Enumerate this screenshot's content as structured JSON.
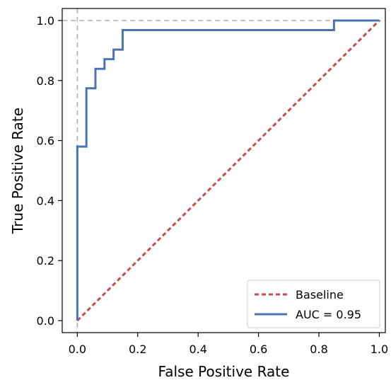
{
  "chart_data": {
    "type": "line",
    "title": "",
    "xlabel": "False Positive Rate",
    "ylabel": "True Positive Rate",
    "xlim": [
      -0.05,
      1.02
    ],
    "ylim": [
      -0.04,
      1.04
    ],
    "xticks": [
      0.0,
      0.2,
      0.4,
      0.6,
      0.8,
      1.0
    ],
    "yticks": [
      0.0,
      0.2,
      0.4,
      0.6,
      0.8,
      1.0
    ],
    "tick_labels_x": [
      "0.0",
      "0.2",
      "0.4",
      "0.6",
      "0.8",
      "1.0"
    ],
    "tick_labels_y": [
      "0.0",
      "0.2",
      "0.4",
      "0.6",
      "0.8",
      "1.0"
    ],
    "reference_lines": {
      "vertical_x": 0.0,
      "horizontal_y": 1.0,
      "color": "#b0b0b0",
      "style": "dashed"
    },
    "legend_position": "bottom-right",
    "series": [
      {
        "name": "Baseline",
        "color": "#c44e52",
        "style": "dashed",
        "x": [
          0.0,
          1.0
        ],
        "y": [
          0.0,
          1.0
        ]
      },
      {
        "name": "AUC = 0.95",
        "color": "#4c72b0",
        "style": "solid",
        "x": [
          0.0,
          0.0,
          0.03,
          0.03,
          0.06,
          0.06,
          0.09,
          0.09,
          0.12,
          0.12,
          0.15,
          0.15,
          0.85,
          0.85,
          1.0
        ],
        "y": [
          0.0,
          0.58,
          0.58,
          0.774,
          0.774,
          0.839,
          0.839,
          0.871,
          0.871,
          0.903,
          0.903,
          0.968,
          0.968,
          1.0,
          1.0
        ]
      }
    ]
  }
}
